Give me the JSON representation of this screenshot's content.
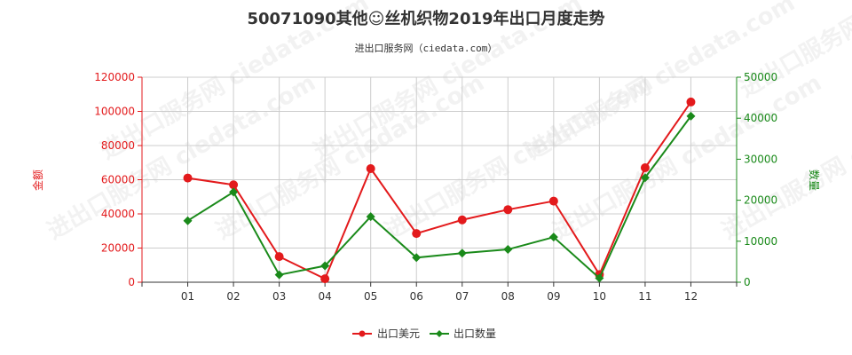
{
  "chart_data": {
    "type": "line",
    "title": "50071090其他☺丝机织物2019年出口月度走势",
    "subtitle": "进出口服务网（ciedata.com）",
    "watermark": "进出口服务网 ciedata.com",
    "categories": [
      "01",
      "02",
      "03",
      "04",
      "05",
      "06",
      "07",
      "08",
      "09",
      "10",
      "11",
      "12"
    ],
    "y_left": {
      "label": "金额",
      "min": 0,
      "max": 120000,
      "ticks": [
        0,
        20000,
        40000,
        60000,
        80000,
        100000,
        120000
      ],
      "color": "#e31a1c"
    },
    "y_right": {
      "label": "数量",
      "min": 0,
      "max": 50000,
      "ticks": [
        0,
        10000,
        20000,
        30000,
        40000,
        50000
      ],
      "color": "#1a8a1a"
    },
    "series": [
      {
        "name": "出口美元",
        "axis": "left",
        "color": "#e31a1c",
        "marker": "circle",
        "values": [
          61000,
          57000,
          15000,
          2000,
          66500,
          28500,
          36500,
          42500,
          47500,
          4500,
          67000,
          105500
        ]
      },
      {
        "name": "出口数量",
        "axis": "right",
        "color": "#1a8a1a",
        "marker": "diamond",
        "values": [
          15000,
          22000,
          1800,
          4000,
          16000,
          6000,
          7100,
          8000,
          11000,
          1000,
          25500,
          40500
        ]
      }
    ],
    "grid": true,
    "legend_position": "bottom-center"
  }
}
